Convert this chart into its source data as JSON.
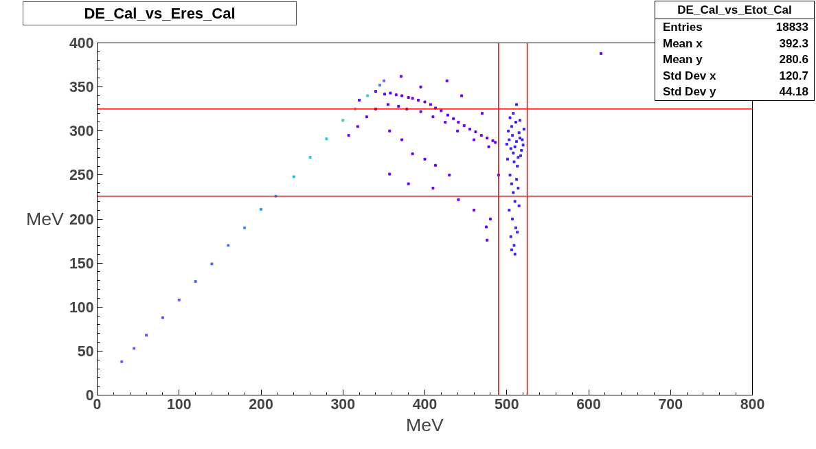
{
  "chart_data": {
    "type": "scatter",
    "title": "DE_Cal_vs_Eres_Cal",
    "xlabel": "MeV",
    "ylabel": "MeV",
    "xlim": [
      0,
      800
    ],
    "ylim": [
      0,
      400
    ],
    "xticks": [
      0,
      100,
      200,
      300,
      400,
      500,
      600,
      700,
      800
    ],
    "yticks": [
      0,
      50,
      100,
      150,
      200,
      250,
      300,
      350,
      400
    ],
    "grid": false,
    "marker": "square",
    "series": [
      {
        "colors": [
          "#6a5aff",
          "#6a5aff",
          "#5a5aff",
          "#5a5aff",
          "#5a5aff",
          "#4a6aff",
          "#4a6aff",
          "#4a7aff",
          "#3a8aff",
          "#2a9aff",
          "#2aa8f0",
          "#20b8f0",
          "#20c0e8",
          "#20c8e0",
          "#30d0c0",
          "#50d890",
          "#40c8d0",
          "#5a7aff",
          "#6a5aff"
        ],
        "x": [
          30,
          45,
          60,
          80,
          100,
          120,
          140,
          160,
          180,
          200,
          218,
          240,
          260,
          280,
          300,
          315,
          330,
          345,
          350
        ],
        "values": [
          38,
          53,
          68,
          88,
          108,
          129,
          149,
          170,
          190,
          211,
          226,
          248,
          270,
          291,
          312,
          325,
          340,
          352,
          357
        ]
      },
      {
        "color": "#6a00ff",
        "x": [
          351,
          358,
          365,
          372,
          380,
          385,
          392,
          400,
          407,
          413,
          420,
          428,
          435,
          441,
          448,
          455,
          462,
          469,
          476,
          483,
          486,
          355,
          368,
          378,
          395,
          410,
          425,
          440,
          460,
          478,
          307,
          318,
          329,
          340,
          357,
          372,
          385,
          400,
          413,
          430,
          357,
          380,
          410,
          441,
          460,
          475,
          476,
          480,
          427,
          371,
          395,
          340,
          320,
          445,
          470,
          490,
          615
        ],
        "values": [
          342,
          343,
          341,
          340,
          338,
          337,
          335,
          333,
          330,
          326,
          323,
          318,
          314,
          310,
          306,
          302,
          299,
          295,
          292,
          289,
          287,
          330,
          328,
          325,
          322,
          316,
          310,
          300,
          290,
          282,
          295,
          305,
          316,
          325,
          300,
          290,
          274,
          268,
          261,
          250,
          251,
          240,
          235,
          222,
          210,
          191,
          176,
          200,
          357,
          362,
          350,
          345,
          335,
          340,
          320,
          250,
          388
        ]
      },
      {
        "color": "#3a20ff",
        "x": [
          500,
          503,
          505,
          507,
          508,
          510,
          512,
          514,
          516,
          518,
          520,
          502,
          506,
          509,
          511,
          513,
          515,
          517,
          519,
          504,
          506,
          508,
          510,
          512,
          514,
          503,
          507,
          511,
          515,
          505,
          509,
          513,
          506,
          510,
          508,
          512,
          504,
          516,
          501,
          521
        ],
        "values": [
          285,
          290,
          280,
          295,
          275,
          282,
          288,
          270,
          292,
          278,
          284,
          300,
          305,
          265,
          310,
          260,
          298,
          272,
          290,
          250,
          240,
          230,
          220,
          245,
          235,
          210,
          200,
          190,
          215,
          180,
          170,
          185,
          165,
          160,
          320,
          330,
          315,
          312,
          268,
          302
        ]
      }
    ],
    "annotations": [
      "DE_Cal_vs_Etot_Cal",
      "Entries",
      "18833",
      "Mean x",
      "392.3",
      "Mean y",
      "280.6",
      "Std Dev x",
      "120.7",
      "Std Dev y",
      "44.18"
    ],
    "ref_lines": [
      {
        "axis": "x",
        "value": 490,
        "color": "#ff0000"
      },
      {
        "axis": "x",
        "value": 525,
        "color": "#ff0000"
      },
      {
        "axis": "y",
        "value": 325,
        "color": "#ff0000"
      },
      {
        "axis": "y",
        "value": 226,
        "color": "#ff0000"
      }
    ]
  }
}
